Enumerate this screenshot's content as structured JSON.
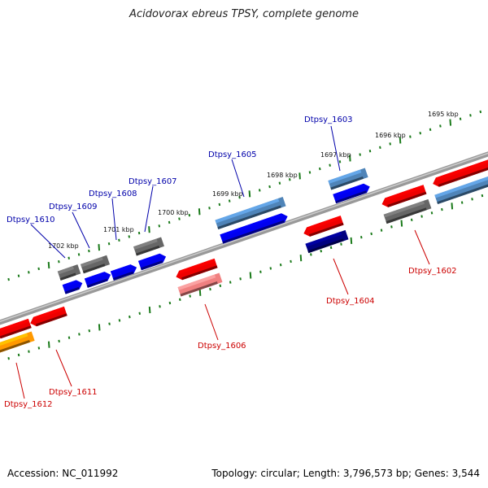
{
  "title": "Acidovorax ebreus TPSY, complete genome",
  "footer": {
    "accession": "Accession: NC_011992",
    "summary": "Topology: circular; Length: 3,796,573 bp; Genes: 3,544"
  },
  "colors": {
    "blue": "#0000ee",
    "steelblue": "#4f84b8",
    "red": "#ee0000",
    "pink": "#f08080",
    "gray": "#666666",
    "navy": "#000080",
    "orange": "#ff9900",
    "backbone": "#777777",
    "tick": "#1a7a1a",
    "label_blue": "#0000aa",
    "label_red": "#cc0000"
  },
  "scale_labels": [
    "1695 kbp",
    "1696 kbp",
    "1697 kbp",
    "1698 kbp",
    "1699 kbp",
    "1700 kbp",
    "1701 kbp",
    "1702 kbp"
  ],
  "genes": [
    {
      "id": "Dtpsy_1602",
      "color": "red"
    },
    {
      "id": "Dtpsy_1603",
      "color": "blue"
    },
    {
      "id": "Dtpsy_1604",
      "color": "red"
    },
    {
      "id": "Dtpsy_1605",
      "color": "blue"
    },
    {
      "id": "Dtpsy_1606",
      "color": "red"
    },
    {
      "id": "Dtpsy_1607",
      "color": "blue"
    },
    {
      "id": "Dtpsy_1608",
      "color": "blue"
    },
    {
      "id": "Dtpsy_1609",
      "color": "blue"
    },
    {
      "id": "Dtpsy_1610",
      "color": "blue"
    },
    {
      "id": "Dtpsy_1611",
      "color": "red"
    },
    {
      "id": "Dtpsy_1612",
      "color": "red"
    }
  ]
}
